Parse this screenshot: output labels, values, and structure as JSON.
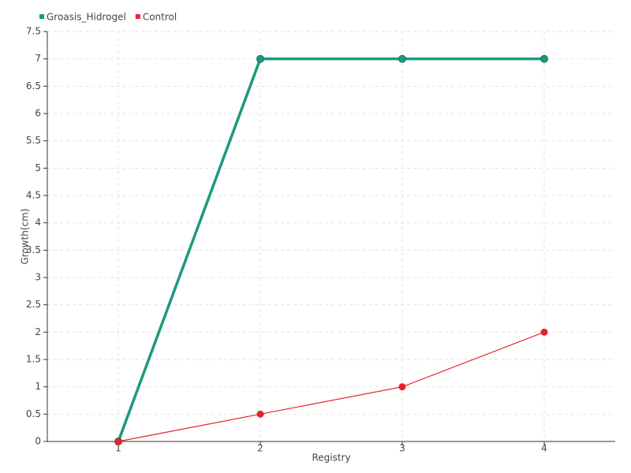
{
  "chart_data": {
    "type": "line",
    "x": [
      1,
      2,
      3,
      4
    ],
    "series": [
      {
        "name": "Groasis_Hidrogel",
        "color": "#1b9a7e",
        "values": [
          0,
          7,
          7,
          7
        ]
      },
      {
        "name": "Control",
        "color": "#e8212e",
        "values": [
          0,
          0.5,
          1,
          2
        ]
      }
    ],
    "xlabel": "Registry",
    "ylabel": "Growth(cm)",
    "xlim": [
      0.5,
      4.5
    ],
    "xticks": [
      1,
      2,
      3,
      4
    ],
    "ylim": [
      0,
      7.5
    ],
    "yticks": [
      0,
      0.5,
      1,
      1.5,
      2,
      2.5,
      3,
      3.5,
      4,
      4.5,
      5,
      5.5,
      6,
      6.5,
      7,
      7.5
    ],
    "grid": true,
    "legend": "top-left"
  }
}
